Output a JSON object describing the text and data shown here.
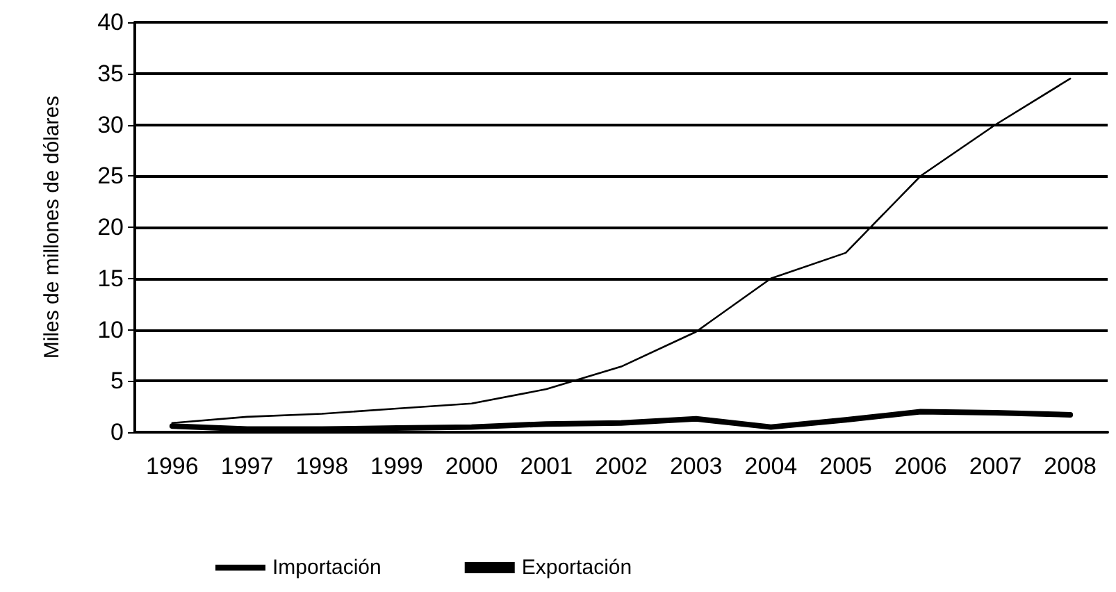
{
  "chart_data": {
    "type": "line",
    "ylabel": "Miles de millones de dólares",
    "categories": [
      "1996",
      "1997",
      "1998",
      "1999",
      "2000",
      "2001",
      "2002",
      "2003",
      "2004",
      "2005",
      "2006",
      "2007",
      "2008"
    ],
    "series": [
      {
        "name": "Importación",
        "color": "#000000",
        "values": [
          0.9,
          1.5,
          1.8,
          2.3,
          2.8,
          4.2,
          6.4,
          9.8,
          15,
          17.5,
          25,
          30,
          34.5
        ]
      },
      {
        "name": "Exportación",
        "color": "#000000",
        "values": [
          0.6,
          0.3,
          0.3,
          0.4,
          0.5,
          0.8,
          0.9,
          1.3,
          0.5,
          1.2,
          2.0,
          1.9,
          1.7
        ]
      }
    ],
    "ylim": [
      0,
      40
    ],
    "yticks": [
      0,
      5,
      10,
      15,
      20,
      25,
      30,
      35,
      40
    ],
    "grid": "y",
    "legend": "bottom",
    "marker": "none",
    "line_style": "solid"
  }
}
